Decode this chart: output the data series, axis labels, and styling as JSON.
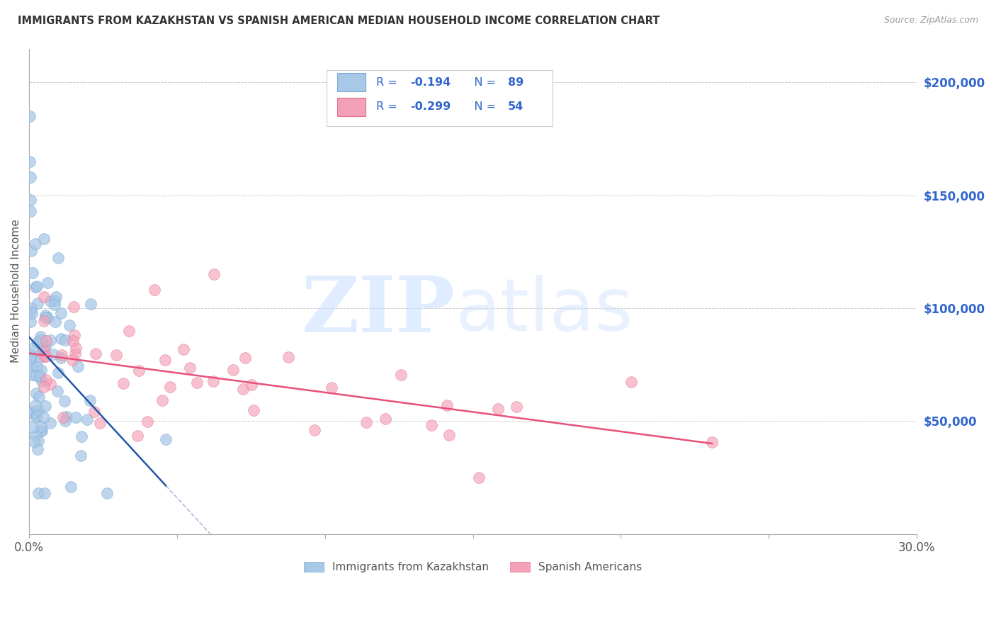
{
  "title": "IMMIGRANTS FROM KAZAKHSTAN VS SPANISH AMERICAN MEDIAN HOUSEHOLD INCOME CORRELATION CHART",
  "source": "Source: ZipAtlas.com",
  "ylabel": "Median Household Income",
  "xlim": [
    0.0,
    0.3
  ],
  "ylim": [
    0,
    215000
  ],
  "ytick_vals": [
    50000,
    100000,
    150000,
    200000
  ],
  "ytick_labels": [
    "$50,000",
    "$100,000",
    "$150,000",
    "$200,000"
  ],
  "legend1_label": "R =  -0.194   N = 89",
  "legend2_label": "R =  -0.299   N = 54",
  "blue_color": "#A8C8E8",
  "pink_color": "#F4A0B8",
  "blue_dot_edge": "#7AAACE",
  "pink_dot_edge": "#E07090",
  "blue_line_color": "#2255AA",
  "pink_line_color": "#E8507A",
  "dashed_ext_color": "#AABBDD",
  "background_color": "#FFFFFF",
  "grid_color": "#CCCCCC",
  "right_label_color": "#3366CC",
  "legend_text_color": "#3366CC",
  "title_color": "#333333",
  "source_color": "#999999",
  "watermark_zip_color": "#C8DEFF",
  "watermark_atlas_color": "#C8DEFF"
}
